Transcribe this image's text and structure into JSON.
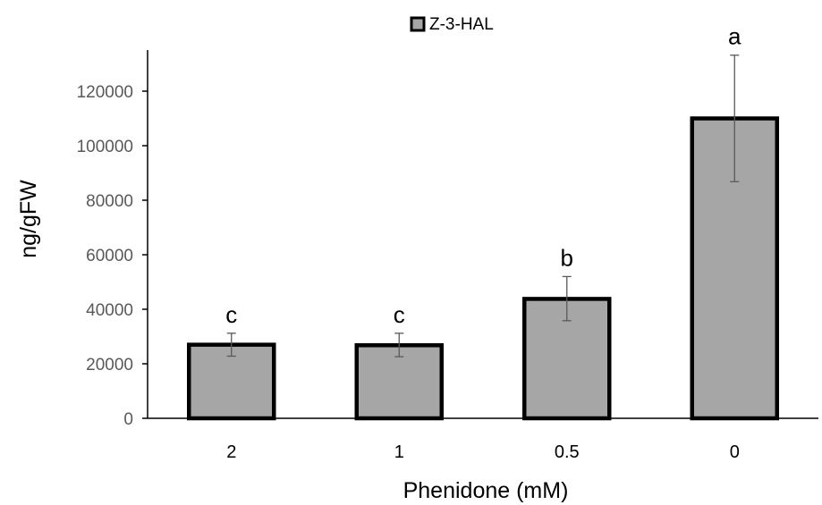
{
  "chart_data": {
    "type": "bar",
    "categories": [
      "2",
      "1",
      "0.5",
      "0"
    ],
    "series": [
      {
        "name": "Z-3-HAL",
        "values": [
          27000,
          26800,
          43800,
          110000
        ],
        "error_low": [
          22800,
          22600,
          35800,
          86800
        ],
        "error_high": [
          31200,
          31200,
          52000,
          133200
        ],
        "significance": [
          "c",
          "c",
          "b",
          "a"
        ]
      }
    ],
    "title": "",
    "xlabel": "Phenidone (mM)",
    "ylabel": "ng/gFW",
    "ylim": [
      0,
      120000
    ],
    "yticks": [
      0,
      20000,
      40000,
      60000,
      80000,
      100000,
      120000
    ],
    "ytick_labels": [
      "0",
      "20000",
      "40000",
      "60000",
      "80000",
      "100000",
      "120000"
    ],
    "grid": false,
    "legend": "top",
    "colors": {
      "bar_fill": "#a6a6a6",
      "bar_edge": "#000000",
      "error_bar": "#595959",
      "axis": "#000000"
    }
  }
}
